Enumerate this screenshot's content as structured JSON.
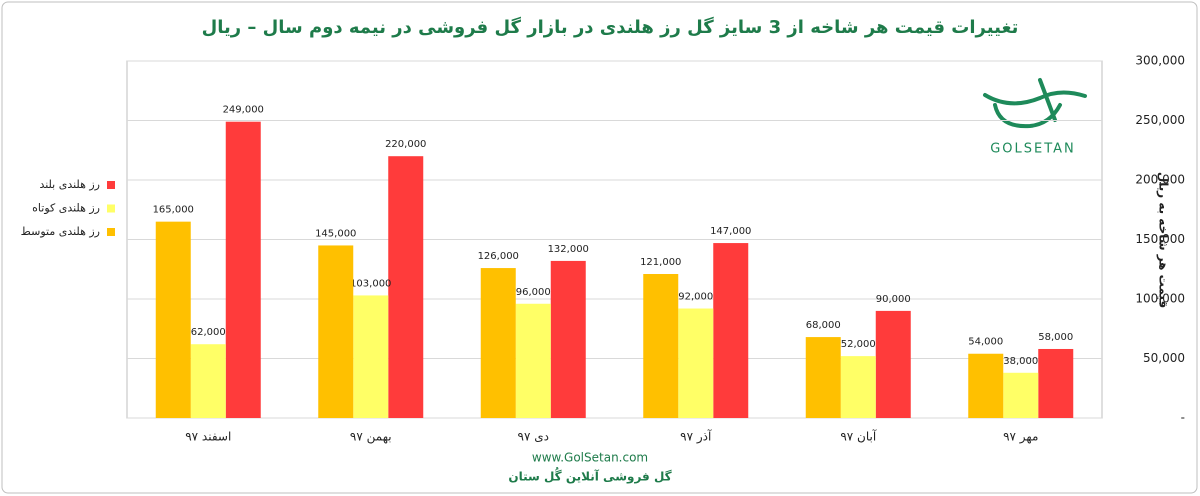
{
  "chart_data": {
    "type": "bar",
    "title": "تغییرات قیمت هر شاخه از 3 سایز گل رز هلندی در بازار گل فروشی در نیمه دوم سال  – ریال",
    "y_axis_label": "قیمت هر شاخه به ریال",
    "categories": [
      "اسفند ۹۷",
      "بهمن ۹۷",
      "دی ۹۷",
      "آذر ۹۷",
      "آبان ۹۷",
      "مهر ۹۷"
    ],
    "series": [
      {
        "name": "رز هلندی بلند",
        "color": "#ff3b3b",
        "values": [
          249000,
          220000,
          132000,
          147000,
          90000,
          58000
        ],
        "value_labels": [
          "249,000",
          "220,000",
          "132,000",
          "147,000",
          "90,000",
          "58,000"
        ]
      },
      {
        "name": "رز هلندی کوتاه",
        "color": "#ffff66",
        "values": [
          62000,
          103000,
          96000,
          92000,
          52000,
          38000
        ],
        "value_labels": [
          "62,000",
          "103,000",
          "96,000",
          "92,000",
          "52,000",
          "38,000"
        ]
      },
      {
        "name": "رز هلندی متوسط",
        "color": "#ffc000",
        "values": [
          165000,
          145000,
          126000,
          121000,
          68000,
          54000
        ],
        "value_labels": [
          "165,000",
          "145,000",
          "126,000",
          "121,000",
          "68,000",
          "54,000"
        ]
      }
    ],
    "ylim": [
      0,
      300000
    ],
    "yticks": [
      {
        "value": 0,
        "label": "-"
      },
      {
        "value": 50000,
        "label": "50,000"
      },
      {
        "value": 100000,
        "label": "100,000"
      },
      {
        "value": 150000,
        "label": "150,000"
      },
      {
        "value": 200000,
        "label": "200,000"
      },
      {
        "value": 250000,
        "label": "250,000"
      },
      {
        "value": 300000,
        "label": "300,000"
      }
    ],
    "grid": true,
    "legend_position": "left",
    "logo": "GOLSETAN",
    "footer": [
      "www.GolSetan.com",
      "گل فروشی آنلاین گُل ستان"
    ]
  }
}
